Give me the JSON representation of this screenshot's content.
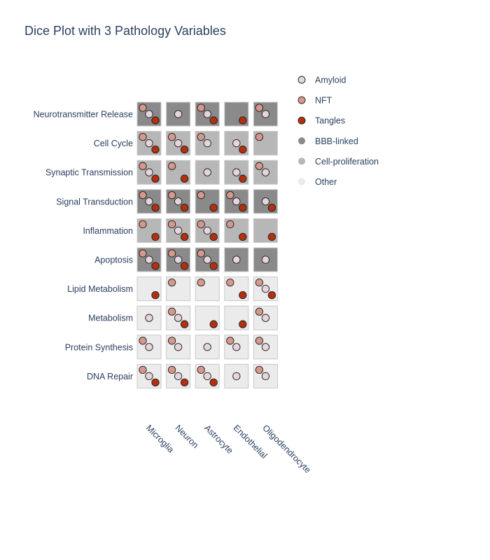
{
  "chart_data": {
    "type": "dice",
    "title": "Dice Plot with 3 Pathology Variables",
    "categories_y": [
      "Neurotransmitter Release",
      "Cell Cycle",
      "Synaptic Transmission",
      "Signal Transduction",
      "Inflammation",
      "Apoptosis",
      "Lipid Metabolism",
      "Metabolism",
      "Protein Synthesis",
      "DNA Repair"
    ],
    "categories_x": [
      "Microglia",
      "Neuron",
      "Astrocyte",
      "Endothelial",
      "Oligodendrocyte"
    ],
    "pathology_variables": [
      {
        "name": "Amyloid",
        "color": "#e6d5dc"
      },
      {
        "name": "NFT",
        "color": "#d4998c"
      },
      {
        "name": "Tangles",
        "color": "#b2300f"
      }
    ],
    "pathway_groups": [
      {
        "name": "BBB-linked",
        "color": "#8a8a8a"
      },
      {
        "name": "Cell-proliferation",
        "color": "#b7b7b7"
      },
      {
        "name": "Other",
        "color": "#ebebeb"
      }
    ],
    "row_groups": [
      "BBB-linked",
      "Cell-proliferation",
      "Cell-proliferation",
      "BBB-linked",
      "Cell-proliferation",
      "BBB-linked",
      "Other",
      "Other",
      "Other",
      "Other"
    ],
    "presence": [
      [
        [
          "NFT",
          "Amyloid",
          "Tangles"
        ],
        [
          "Amyloid"
        ],
        [
          "NFT",
          "Amyloid",
          "Tangles"
        ],
        [
          "Tangles"
        ],
        [
          "NFT",
          "Amyloid"
        ]
      ],
      [
        [
          "NFT",
          "Amyloid",
          "Tangles"
        ],
        [
          "NFT",
          "Amyloid",
          "Tangles"
        ],
        [
          "NFT",
          "Amyloid"
        ],
        [
          "Amyloid",
          "Tangles"
        ],
        [
          "NFT"
        ]
      ],
      [
        [
          "NFT",
          "Amyloid",
          "Tangles"
        ],
        [
          "NFT",
          "Tangles"
        ],
        [
          "Amyloid"
        ],
        [
          "Amyloid",
          "Tangles"
        ],
        [
          "NFT",
          "Amyloid"
        ]
      ],
      [
        [
          "NFT",
          "Amyloid",
          "Tangles"
        ],
        [
          "NFT",
          "Amyloid",
          "Tangles"
        ],
        [
          "NFT",
          "Tangles"
        ],
        [
          "NFT",
          "Amyloid",
          "Tangles"
        ],
        [
          "Amyloid",
          "Tangles"
        ]
      ],
      [
        [
          "NFT",
          "Tangles"
        ],
        [
          "NFT",
          "Amyloid",
          "Tangles"
        ],
        [
          "NFT",
          "Amyloid",
          "Tangles"
        ],
        [
          "NFT",
          "Tangles"
        ],
        [
          "Tangles"
        ]
      ],
      [
        [
          "NFT",
          "Amyloid",
          "Tangles"
        ],
        [
          "NFT",
          "Amyloid",
          "Tangles"
        ],
        [
          "NFT",
          "Amyloid",
          "Tangles"
        ],
        [
          "Amyloid"
        ],
        [
          "Amyloid"
        ]
      ],
      [
        [
          "Tangles"
        ],
        [
          "NFT"
        ],
        [
          "NFT"
        ],
        [
          "NFT",
          "Tangles"
        ],
        [
          "NFT",
          "Amyloid",
          "Tangles"
        ]
      ],
      [
        [
          "Amyloid"
        ],
        [
          "NFT",
          "Amyloid",
          "Tangles"
        ],
        [
          "Tangles"
        ],
        [
          "Tangles"
        ],
        [
          "NFT",
          "Amyloid"
        ]
      ],
      [
        [
          "NFT",
          "Amyloid"
        ],
        [
          "NFT",
          "Amyloid"
        ],
        [
          "Amyloid"
        ],
        [
          "NFT",
          "Amyloid"
        ],
        [
          "NFT",
          "Amyloid"
        ]
      ],
      [
        [
          "NFT",
          "Amyloid",
          "Tangles"
        ],
        [
          "NFT",
          "Amyloid",
          "Tangles"
        ],
        [
          "NFT",
          "Amyloid",
          "Tangles"
        ],
        [
          "Amyloid"
        ],
        [
          "NFT",
          "Amyloid"
        ]
      ]
    ],
    "legend_position": "right"
  }
}
